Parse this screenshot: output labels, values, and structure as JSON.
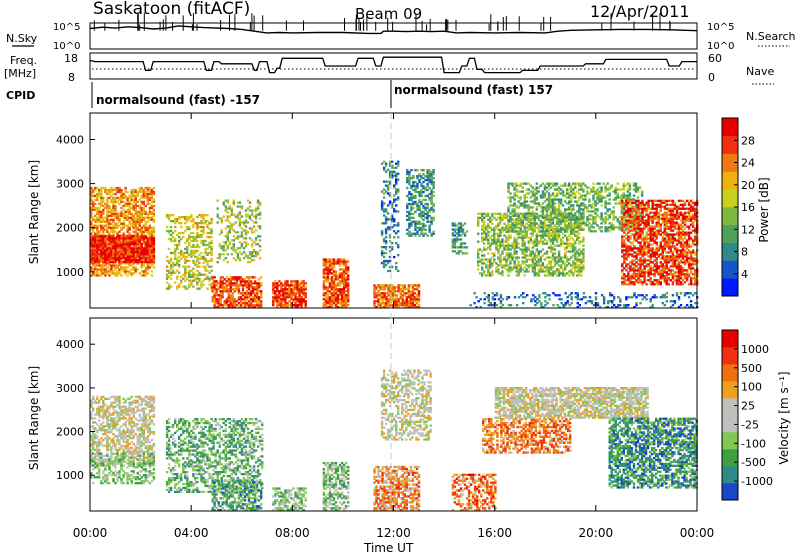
{
  "header": {
    "station": "Saskatoon (fitACF)",
    "beam": "Beam 09",
    "date": "12/Apr/2011"
  },
  "top_panels": {
    "nsky_label": "N.Sky",
    "nsky_ticks": [
      "10^5",
      "10^0"
    ],
    "nsearch_label": "N.Search",
    "nsearch_ticks": [
      "10^5",
      "10^0"
    ],
    "freq_label": "Freq.",
    "freq_unit": "[MHz]",
    "freq_ticks": [
      "18",
      "8"
    ],
    "freq_ylim": [
      8,
      18
    ],
    "nave_label": "Nave",
    "nave_ticks": [
      "60",
      "0"
    ],
    "freq_trace": [
      [
        0,
        15.5
      ],
      [
        0.2,
        15
      ],
      [
        2.1,
        15
      ],
      [
        2.2,
        11
      ],
      [
        2.4,
        11
      ],
      [
        2.5,
        15
      ],
      [
        4.5,
        15
      ],
      [
        4.6,
        11
      ],
      [
        4.8,
        11
      ],
      [
        4.9,
        15
      ],
      [
        5.1,
        15
      ],
      [
        5.2,
        14
      ],
      [
        6.4,
        14
      ],
      [
        6.5,
        11
      ],
      [
        6.6,
        11
      ],
      [
        6.7,
        15
      ],
      [
        7.0,
        15
      ],
      [
        7.1,
        10
      ],
      [
        7.3,
        10
      ],
      [
        7.4,
        12
      ],
      [
        7.5,
        12
      ],
      [
        7.6,
        16.5
      ],
      [
        9.2,
        16.5
      ],
      [
        9.3,
        13
      ],
      [
        10.5,
        13
      ],
      [
        10.6,
        16.5
      ],
      [
        11.2,
        16.5
      ],
      [
        11.3,
        13
      ],
      [
        11.5,
        13
      ],
      [
        11.6,
        17
      ],
      [
        13.9,
        17
      ],
      [
        14.0,
        10
      ],
      [
        14.6,
        10
      ],
      [
        14.7,
        13
      ],
      [
        14.9,
        13
      ],
      [
        15.0,
        16.5
      ],
      [
        15.2,
        16.5
      ],
      [
        15.3,
        11.5
      ],
      [
        15.5,
        11.5
      ],
      [
        15.6,
        10
      ],
      [
        17.0,
        10
      ],
      [
        17.1,
        11
      ],
      [
        17.7,
        11
      ],
      [
        17.8,
        13
      ],
      [
        18.5,
        13
      ],
      [
        18.6,
        13
      ],
      [
        19.5,
        13
      ],
      [
        19.6,
        14
      ],
      [
        20.3,
        14
      ],
      [
        20.4,
        16
      ],
      [
        22.8,
        16
      ],
      [
        22.9,
        13
      ],
      [
        23.3,
        13
      ],
      [
        23.4,
        15
      ],
      [
        24,
        15
      ]
    ],
    "nsky_trace": [
      [
        0,
        4.2
      ],
      [
        0.5,
        4.5
      ],
      [
        1,
        4.3
      ],
      [
        1.5,
        4.6
      ],
      [
        2,
        4.4
      ],
      [
        2.5,
        4.1
      ],
      [
        3,
        4.3
      ],
      [
        3.5,
        4.8
      ],
      [
        4,
        4.6
      ],
      [
        4.5,
        4.4
      ],
      [
        5,
        4.3
      ],
      [
        5.5,
        4.2
      ],
      [
        6,
        4.0
      ],
      [
        6.5,
        3.6
      ],
      [
        7,
        3.2
      ],
      [
        7.5,
        3.3
      ],
      [
        8,
        3.2
      ],
      [
        9,
        3.3
      ],
      [
        10,
        3.3
      ],
      [
        11,
        3.1
      ],
      [
        11.5,
        3.1
      ],
      [
        11.6,
        3.6
      ],
      [
        12,
        3.6
      ],
      [
        12.5,
        3.5
      ],
      [
        13,
        3.6
      ],
      [
        13.5,
        3.5
      ],
      [
        14,
        3.6
      ],
      [
        14.5,
        3.2
      ],
      [
        15,
        3.3
      ],
      [
        16,
        3.2
      ],
      [
        17,
        3.3
      ],
      [
        18,
        3.2
      ],
      [
        18.5,
        3.6
      ],
      [
        19,
        3.8
      ],
      [
        20,
        3.9
      ],
      [
        21,
        4.0
      ],
      [
        22,
        4.0
      ],
      [
        23,
        3.9
      ],
      [
        24,
        3.7
      ]
    ],
    "cpid_label": "CPID",
    "cpid_segments": [
      {
        "label": "normalsound (fast) -157",
        "start": 0
      },
      {
        "label": "normalsound (fast) 157",
        "start": 12
      }
    ]
  },
  "chart_data": [
    {
      "type": "heatmap",
      "name": "power",
      "ylabel": "Slant Range [km]",
      "yticks": [
        "4000",
        "3000",
        "2000",
        "1000"
      ],
      "ylim": [
        180,
        4600
      ],
      "xlim": [
        0,
        24
      ],
      "colorbar_label": "Power [dB]",
      "colorbar_ticks": [
        "28",
        "24",
        "20",
        "16",
        "12",
        "8",
        "4"
      ],
      "colors": [
        "#0018ff",
        "#1456c8",
        "#2f8a8a",
        "#4fa05a",
        "#80b840",
        "#c8d020",
        "#f0b010",
        "#f07810",
        "#f03010",
        "#e80000"
      ],
      "regions": [
        {
          "t0": 0.0,
          "t1": 2.5,
          "r0": 900,
          "r1": 2900,
          "v": 0.7,
          "d": 0.65
        },
        {
          "t0": 0.0,
          "t1": 2.5,
          "r0": 1200,
          "r1": 1800,
          "v": 0.9,
          "d": 0.9
        },
        {
          "t0": 3.0,
          "t1": 4.8,
          "r0": 600,
          "r1": 2300,
          "v": 0.55,
          "d": 0.45
        },
        {
          "t0": 4.8,
          "t1": 6.8,
          "r0": 180,
          "r1": 900,
          "v": 0.8,
          "d": 0.7
        },
        {
          "t0": 5.0,
          "t1": 6.7,
          "r0": 1200,
          "r1": 2600,
          "v": 0.5,
          "d": 0.35
        },
        {
          "t0": 7.2,
          "t1": 8.5,
          "r0": 180,
          "r1": 800,
          "v": 0.85,
          "d": 0.8
        },
        {
          "t0": 9.2,
          "t1": 10.2,
          "r0": 180,
          "r1": 1300,
          "v": 0.8,
          "d": 0.8
        },
        {
          "t0": 11.2,
          "t1": 13.0,
          "r0": 180,
          "r1": 700,
          "v": 0.75,
          "d": 0.8
        },
        {
          "t0": 11.5,
          "t1": 12.2,
          "r0": 1000,
          "r1": 3500,
          "v": 0.25,
          "d": 0.35
        },
        {
          "t0": 12.5,
          "t1": 13.6,
          "r0": 1800,
          "r1": 3300,
          "v": 0.3,
          "d": 0.55
        },
        {
          "t0": 14.3,
          "t1": 14.9,
          "r0": 1400,
          "r1": 2100,
          "v": 0.3,
          "d": 0.6
        },
        {
          "t0": 15.3,
          "t1": 19.5,
          "r0": 900,
          "r1": 2300,
          "v": 0.45,
          "d": 0.55
        },
        {
          "t0": 16.5,
          "t1": 21.8,
          "r0": 1900,
          "r1": 3000,
          "v": 0.4,
          "d": 0.5
        },
        {
          "t0": 21.0,
          "t1": 24.0,
          "r0": 700,
          "r1": 2600,
          "v": 0.85,
          "d": 0.7
        },
        {
          "t0": 15.0,
          "t1": 24.0,
          "r0": 180,
          "r1": 500,
          "v": 0.2,
          "d": 0.25
        }
      ]
    },
    {
      "type": "heatmap",
      "name": "velocity",
      "ylabel": "Slant Range [km]",
      "yticks": [
        "4000",
        "3000",
        "2000",
        "1000"
      ],
      "ylim": [
        180,
        4600
      ],
      "xlim": [
        0,
        24
      ],
      "xticks": [
        "00:00",
        "04:00",
        "08:00",
        "12:00",
        "16:00",
        "20:00",
        "00:00"
      ],
      "xlabel": "Time UT",
      "colorbar_label": "Velocity [m s⁻¹]",
      "colorbar_ticks": [
        "1000",
        "500",
        "100",
        "25",
        "-25",
        "-100",
        "-500",
        "-1000"
      ],
      "colors": [
        "#1a46c8",
        "#2f8a8a",
        "#40a040",
        "#80c850",
        "#bfbfbf",
        "#c0c0b8",
        "#f0a020",
        "#f07010",
        "#f03010",
        "#e80000"
      ],
      "regions": [
        {
          "t0": 0.0,
          "t1": 2.5,
          "r0": 1200,
          "r1": 2800,
          "v": 0.5,
          "d": 0.6
        },
        {
          "t0": 0.0,
          "t1": 2.5,
          "r0": 800,
          "r1": 1500,
          "v": 0.35,
          "d": 0.5
        },
        {
          "t0": 3.0,
          "t1": 6.8,
          "r0": 600,
          "r1": 2300,
          "v": 0.3,
          "d": 0.5
        },
        {
          "t0": 4.8,
          "t1": 6.8,
          "r0": 180,
          "r1": 900,
          "v": 0.25,
          "d": 0.6
        },
        {
          "t0": 7.2,
          "t1": 8.5,
          "r0": 180,
          "r1": 700,
          "v": 0.35,
          "d": 0.6
        },
        {
          "t0": 9.2,
          "t1": 10.2,
          "r0": 180,
          "r1": 1300,
          "v": 0.35,
          "d": 0.6
        },
        {
          "t0": 11.2,
          "t1": 13.0,
          "r0": 180,
          "r1": 1200,
          "v": 0.7,
          "d": 0.65
        },
        {
          "t0": 11.5,
          "t1": 13.5,
          "r0": 1800,
          "r1": 3400,
          "v": 0.5,
          "d": 0.5
        },
        {
          "t0": 14.3,
          "t1": 16.0,
          "r0": 180,
          "r1": 1000,
          "v": 0.75,
          "d": 0.5
        },
        {
          "t0": 15.5,
          "t1": 19.0,
          "r0": 1500,
          "r1": 2300,
          "v": 0.72,
          "d": 0.6
        },
        {
          "t0": 16.0,
          "t1": 22.0,
          "r0": 2300,
          "r1": 3000,
          "v": 0.5,
          "d": 0.75
        },
        {
          "t0": 20.5,
          "t1": 24.0,
          "r0": 700,
          "r1": 2300,
          "v": 0.2,
          "d": 0.65
        }
      ]
    }
  ]
}
